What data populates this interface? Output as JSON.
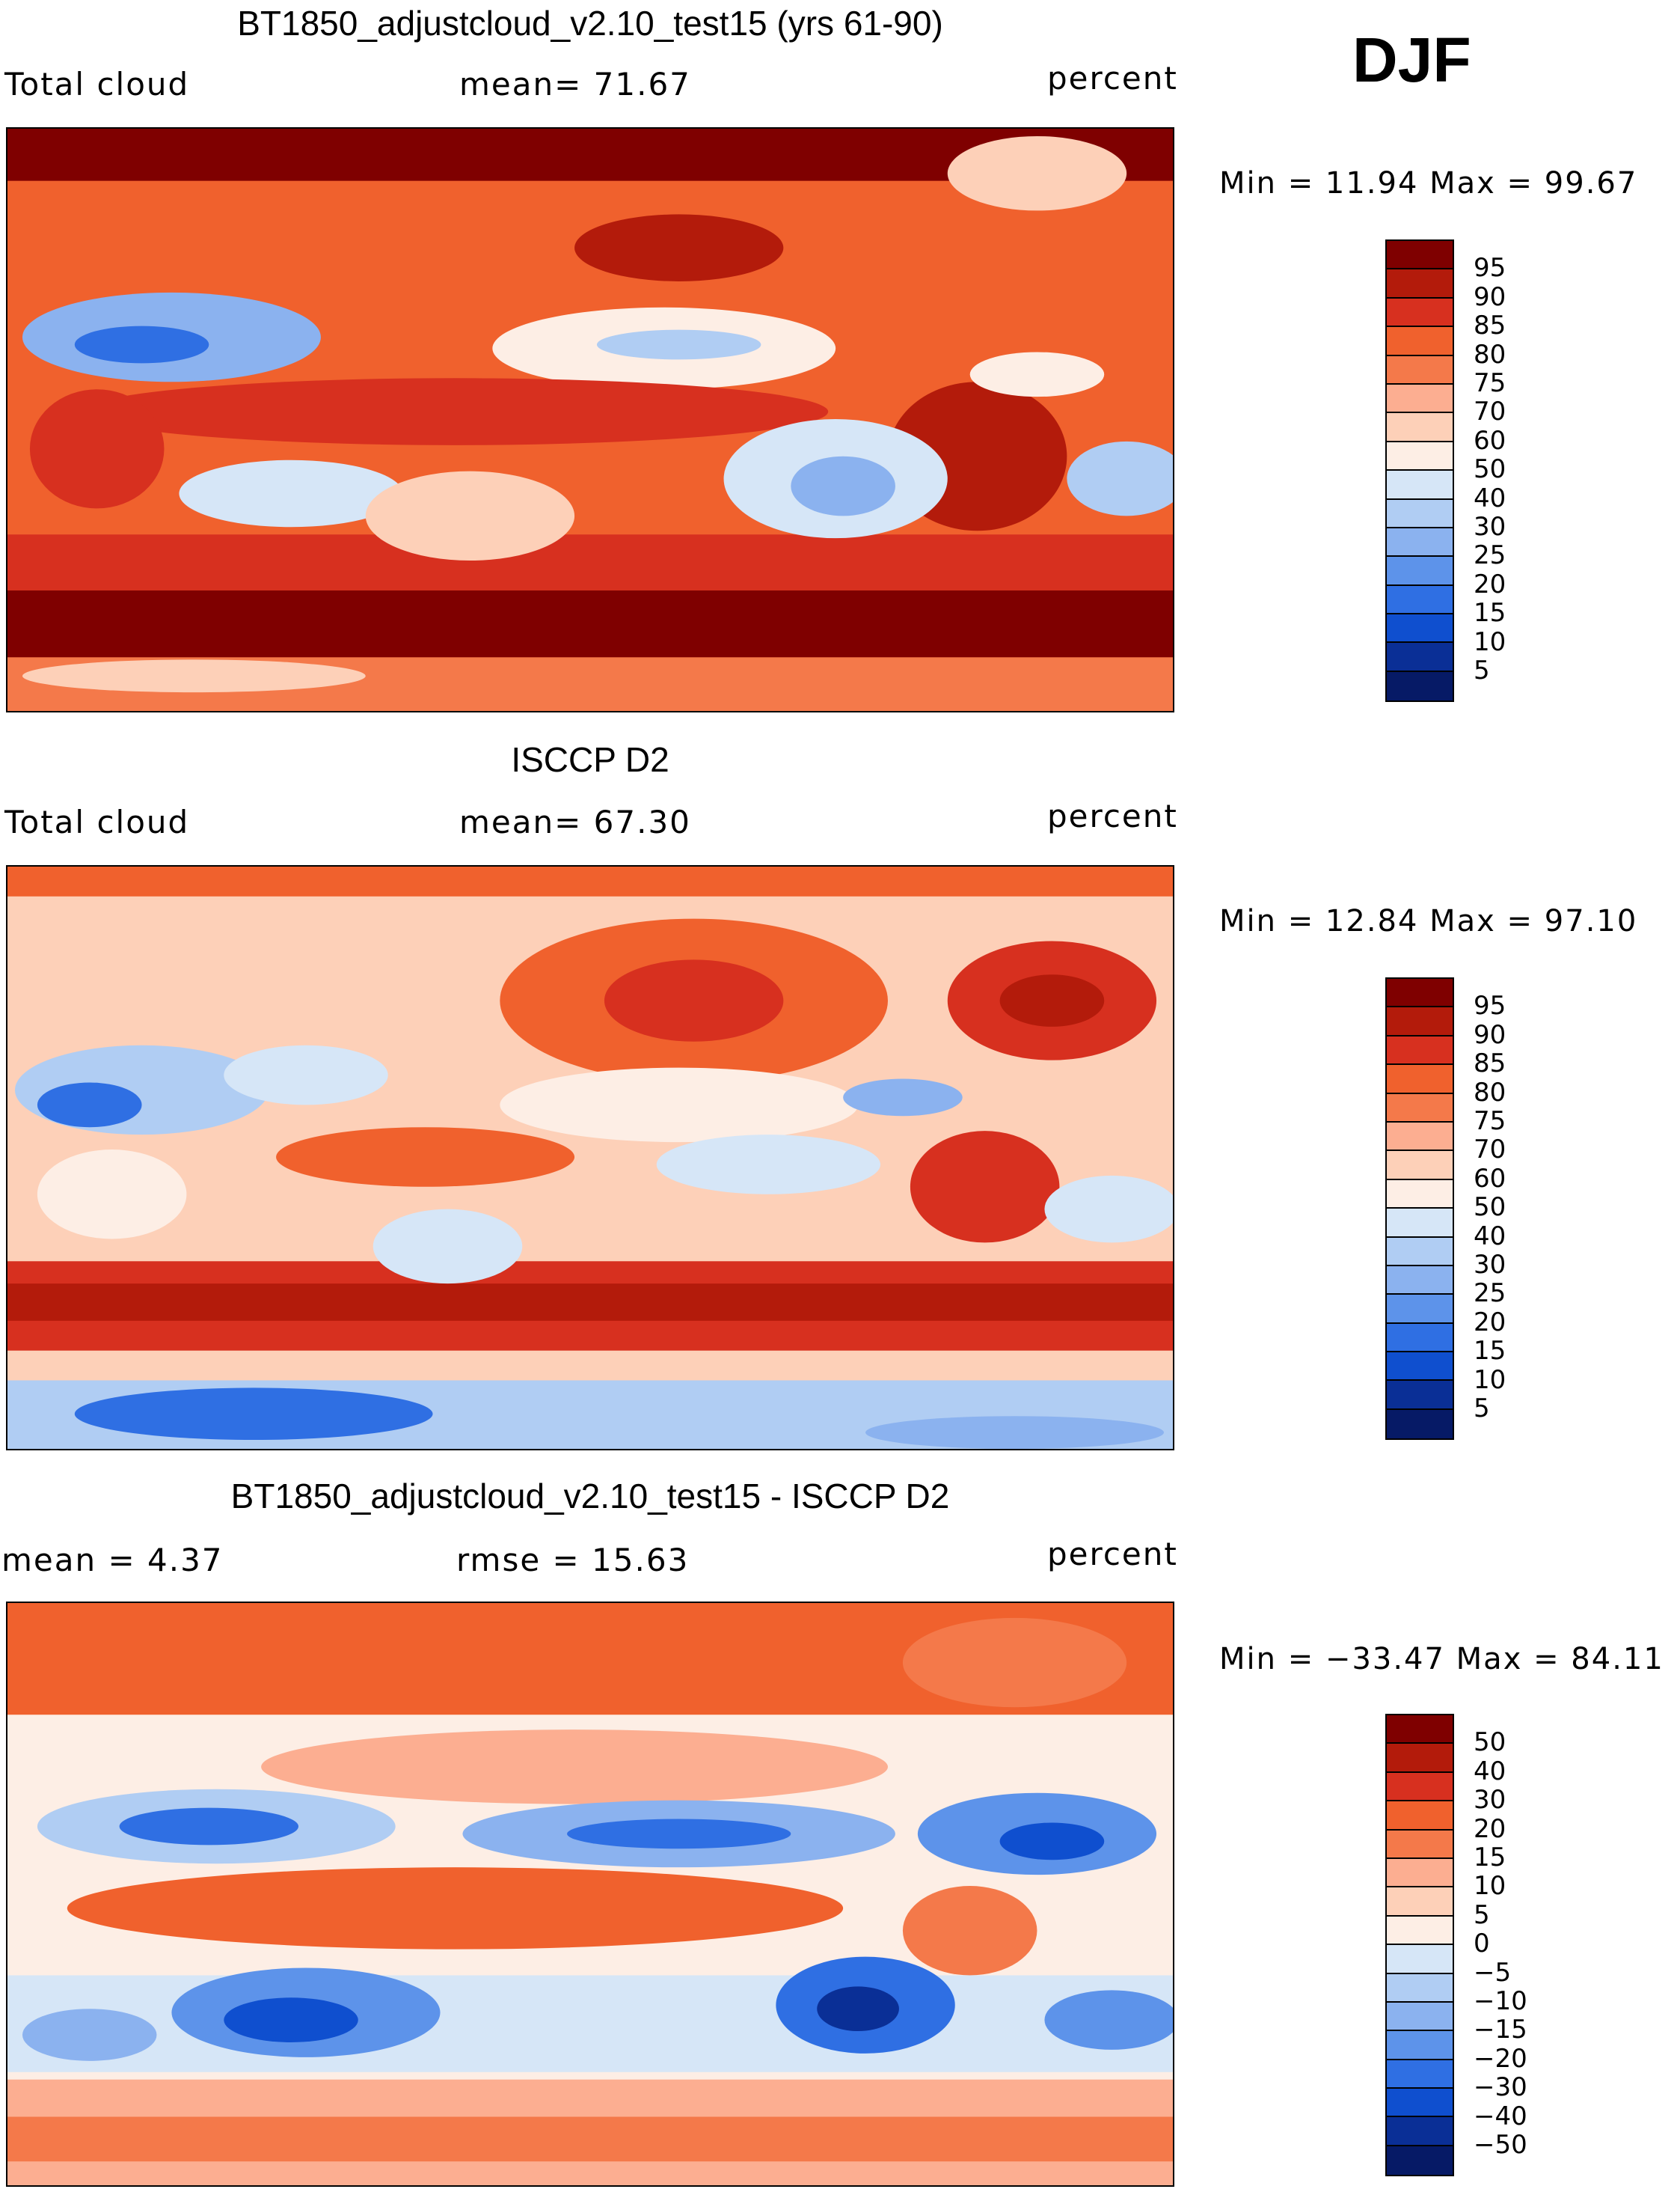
{
  "season": "DJF",
  "colors": {
    "dark_red": "#7f0000",
    "red": "#d7301f",
    "orange_red": "#f0612d",
    "light_orange": "#fcae91",
    "cream": "#fde8da",
    "light_blue": "#c6dbef",
    "blue": "#4a86e8",
    "dark_blue": "#08306b"
  },
  "panels": [
    {
      "title": "BT1850_adjustcloud_v2.10_test15 (yrs 61-90)",
      "left_label": "Total cloud",
      "center_label": "mean=   71.67",
      "right_label": "percent",
      "minmax": "Min =   11.94 Max =   99.67",
      "colorbar": {
        "labels": [
          "95",
          "90",
          "85",
          "80",
          "75",
          "70",
          "60",
          "50",
          "40",
          "30",
          "25",
          "20",
          "15",
          "10",
          "5"
        ],
        "colors": [
          "#7f0000",
          "#b31b0b",
          "#d7301f",
          "#f0612d",
          "#f4794a",
          "#fcae91",
          "#fdd0b8",
          "#fdeee5",
          "#d6e6f7",
          "#b0cdf3",
          "#8bb2ef",
          "#5d93ea",
          "#2f6fe3",
          "#0f4fcf",
          "#0a2f96",
          "#061a66"
        ]
      }
    },
    {
      "title": "ISCCP D2",
      "left_label": "Total cloud",
      "center_label": "mean=   67.30",
      "right_label": "percent",
      "minmax": "Min =   12.84 Max =   97.10",
      "colorbar": {
        "labels": [
          "95",
          "90",
          "85",
          "80",
          "75",
          "70",
          "60",
          "50",
          "40",
          "30",
          "25",
          "20",
          "15",
          "10",
          "5"
        ],
        "colors": [
          "#7f0000",
          "#b31b0b",
          "#d7301f",
          "#f0612d",
          "#f4794a",
          "#fcae91",
          "#fdd0b8",
          "#fdeee5",
          "#d6e6f7",
          "#b0cdf3",
          "#8bb2ef",
          "#5d93ea",
          "#2f6fe3",
          "#0f4fcf",
          "#0a2f96",
          "#061a66"
        ]
      }
    },
    {
      "title": "BT1850_adjustcloud_v2.10_test15 - ISCCP D2",
      "left_label": "mean =    4.37",
      "center_label": "rmse =   15.63",
      "right_label": "percent",
      "minmax": "Min = −33.47 Max =   84.11",
      "colorbar": {
        "labels": [
          "50",
          "40",
          "30",
          "20",
          "15",
          "10",
          "5",
          "0",
          "−5",
          "−10",
          "−15",
          "−20",
          "−30",
          "−40",
          "−50"
        ],
        "colors": [
          "#7f0000",
          "#b31b0b",
          "#d7301f",
          "#f0612d",
          "#f4794a",
          "#fcae91",
          "#fdd0b8",
          "#fdeee5",
          "#d6e6f7",
          "#b0cdf3",
          "#8bb2ef",
          "#5d93ea",
          "#2f6fe3",
          "#0f4fcf",
          "#0a2f96",
          "#061a66"
        ]
      }
    }
  ]
}
